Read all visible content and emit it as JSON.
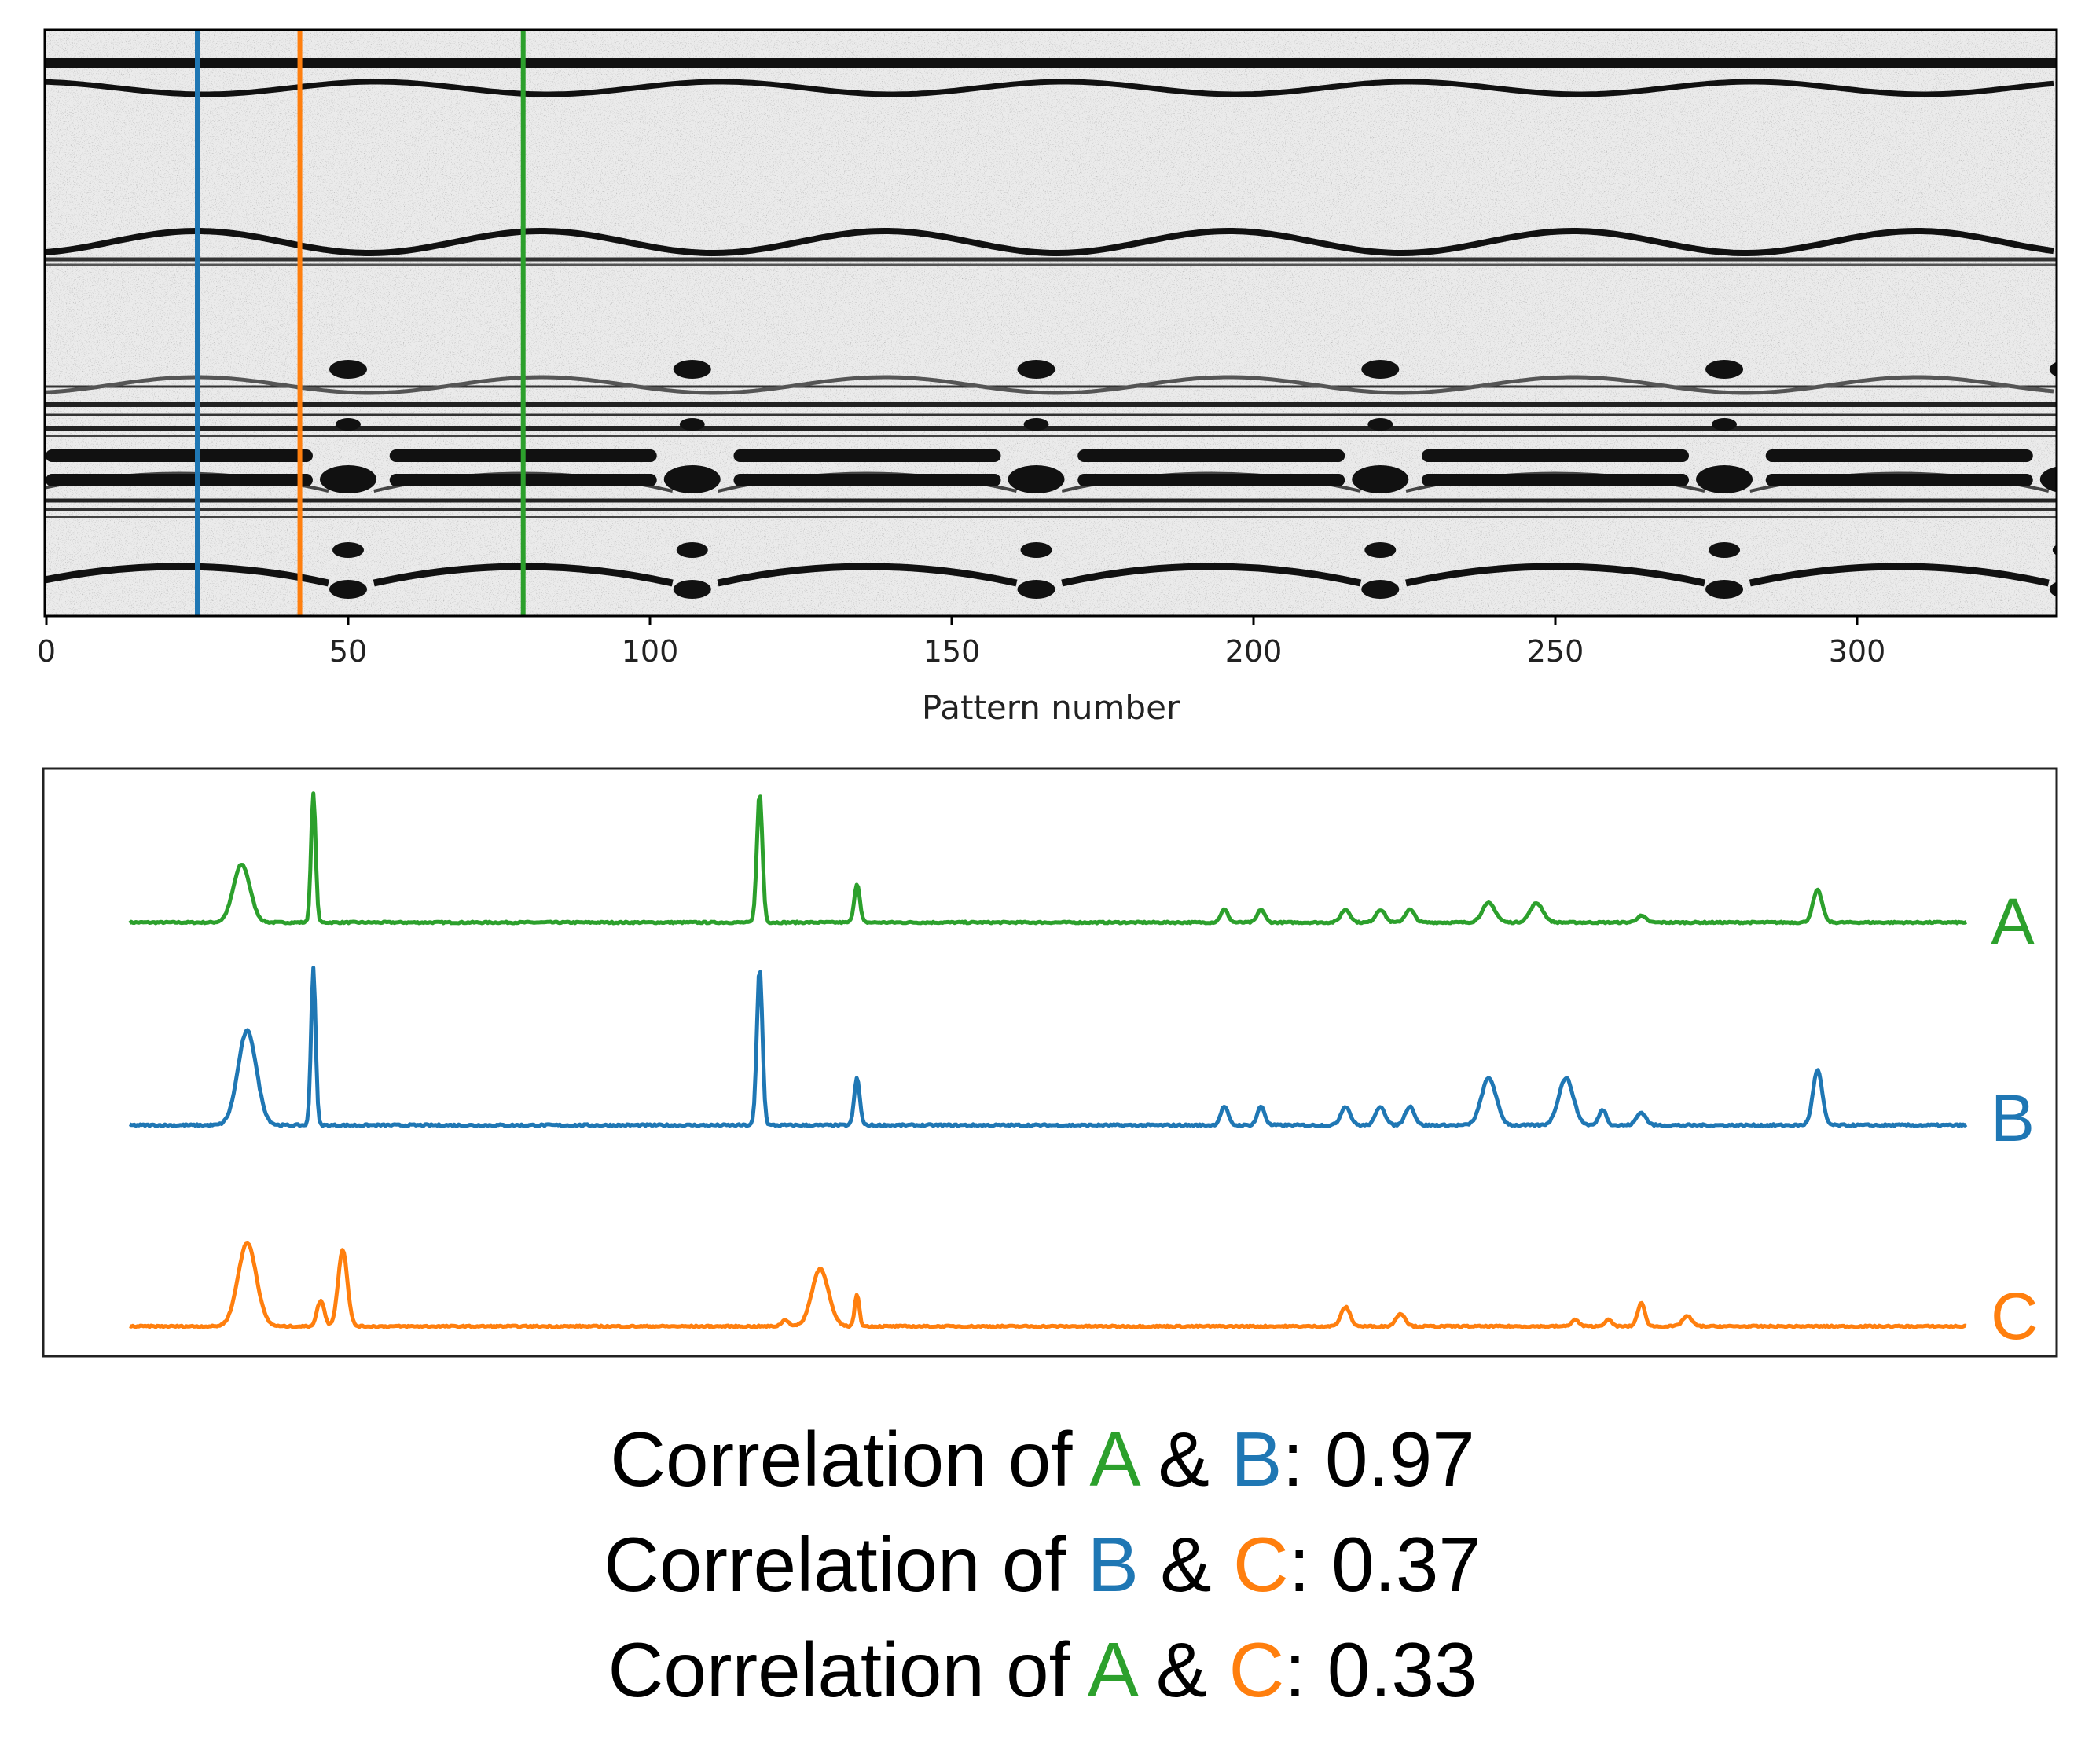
{
  "colors": {
    "A": "#2ca02c",
    "B": "#1f77b4",
    "C": "#ff7f0e",
    "text": "#000000"
  },
  "chart_data": [
    {
      "type": "heatmap",
      "xlabel": "Pattern number",
      "xlim": [
        0,
        336
      ],
      "xticks": [
        0,
        50,
        100,
        150,
        200,
        250,
        300
      ],
      "colormap": "gray_r",
      "markers": [
        {
          "x": 25,
          "trace": "B",
          "color": "#1f77b4"
        },
        {
          "x": 42,
          "trace": "C",
          "color": "#ff7f0e"
        },
        {
          "x": 79,
          "trace": "A",
          "color": "#2ca02c"
        }
      ]
    },
    {
      "type": "line",
      "xlim": [
        0,
        100
      ],
      "series": [
        {
          "name": "A",
          "color": "#2ca02c",
          "baseline": 0.0,
          "peaks": [
            [
              6.1,
              0.45,
              0.9
            ],
            [
              10.0,
              1.0,
              0.25
            ],
            [
              34.3,
              1.0,
              0.3
            ],
            [
              39.6,
              0.3,
              0.3
            ],
            [
              59.6,
              0.1,
              0.4
            ],
            [
              61.6,
              0.1,
              0.4
            ],
            [
              66.2,
              0.1,
              0.5
            ],
            [
              68.1,
              0.1,
              0.5
            ],
            [
              69.7,
              0.1,
              0.5
            ],
            [
              74.0,
              0.15,
              0.7
            ],
            [
              76.6,
              0.15,
              0.7
            ],
            [
              82.3,
              0.05,
              0.5
            ],
            [
              91.9,
              0.25,
              0.5
            ]
          ]
        },
        {
          "name": "B",
          "color": "#1f77b4",
          "baseline": 0.0,
          "peaks": [
            [
              6.4,
              0.6,
              1.0
            ],
            [
              10.0,
              1.0,
              0.25
            ],
            [
              34.3,
              1.0,
              0.3
            ],
            [
              39.6,
              0.3,
              0.3
            ],
            [
              59.6,
              0.12,
              0.4
            ],
            [
              61.6,
              0.12,
              0.4
            ],
            [
              66.2,
              0.12,
              0.5
            ],
            [
              68.1,
              0.12,
              0.5
            ],
            [
              69.7,
              0.12,
              0.5
            ],
            [
              74.0,
              0.3,
              0.8
            ],
            [
              78.2,
              0.3,
              0.8
            ],
            [
              80.2,
              0.1,
              0.4
            ],
            [
              82.3,
              0.08,
              0.5
            ],
            [
              91.9,
              0.35,
              0.5
            ]
          ]
        },
        {
          "name": "C",
          "color": "#ff7f0e",
          "baseline": 0.0,
          "peaks": [
            [
              6.4,
              0.65,
              1.0
            ],
            [
              10.4,
              0.2,
              0.4
            ],
            [
              11.6,
              0.6,
              0.5
            ],
            [
              35.7,
              0.05,
              0.4
            ],
            [
              37.6,
              0.45,
              0.9
            ],
            [
              39.6,
              0.25,
              0.25
            ],
            [
              66.2,
              0.15,
              0.5
            ],
            [
              69.2,
              0.1,
              0.5
            ],
            [
              78.7,
              0.05,
              0.4
            ],
            [
              80.5,
              0.05,
              0.4
            ],
            [
              82.3,
              0.18,
              0.4
            ],
            [
              84.8,
              0.08,
              0.5
            ]
          ]
        }
      ]
    }
  ],
  "trace_labels": {
    "A": "A",
    "B": "B",
    "C": "C"
  },
  "correlations": [
    {
      "prefix": "Correlation of ",
      "first": "A",
      "first_color": "#2ca02c",
      "amp": " & ",
      "second": "B",
      "second_color": "#1f77b4",
      "suffix": ": 0.97"
    },
    {
      "prefix": "Correlation of ",
      "first": "B",
      "first_color": "#1f77b4",
      "amp": " & ",
      "second": "C",
      "second_color": "#ff7f0e",
      "suffix": ": 0.37"
    },
    {
      "prefix": "Correlation of ",
      "first": "A",
      "first_color": "#2ca02c",
      "amp": " & ",
      "second": "C",
      "second_color": "#ff7f0e",
      "suffix": ": 0.33"
    }
  ]
}
